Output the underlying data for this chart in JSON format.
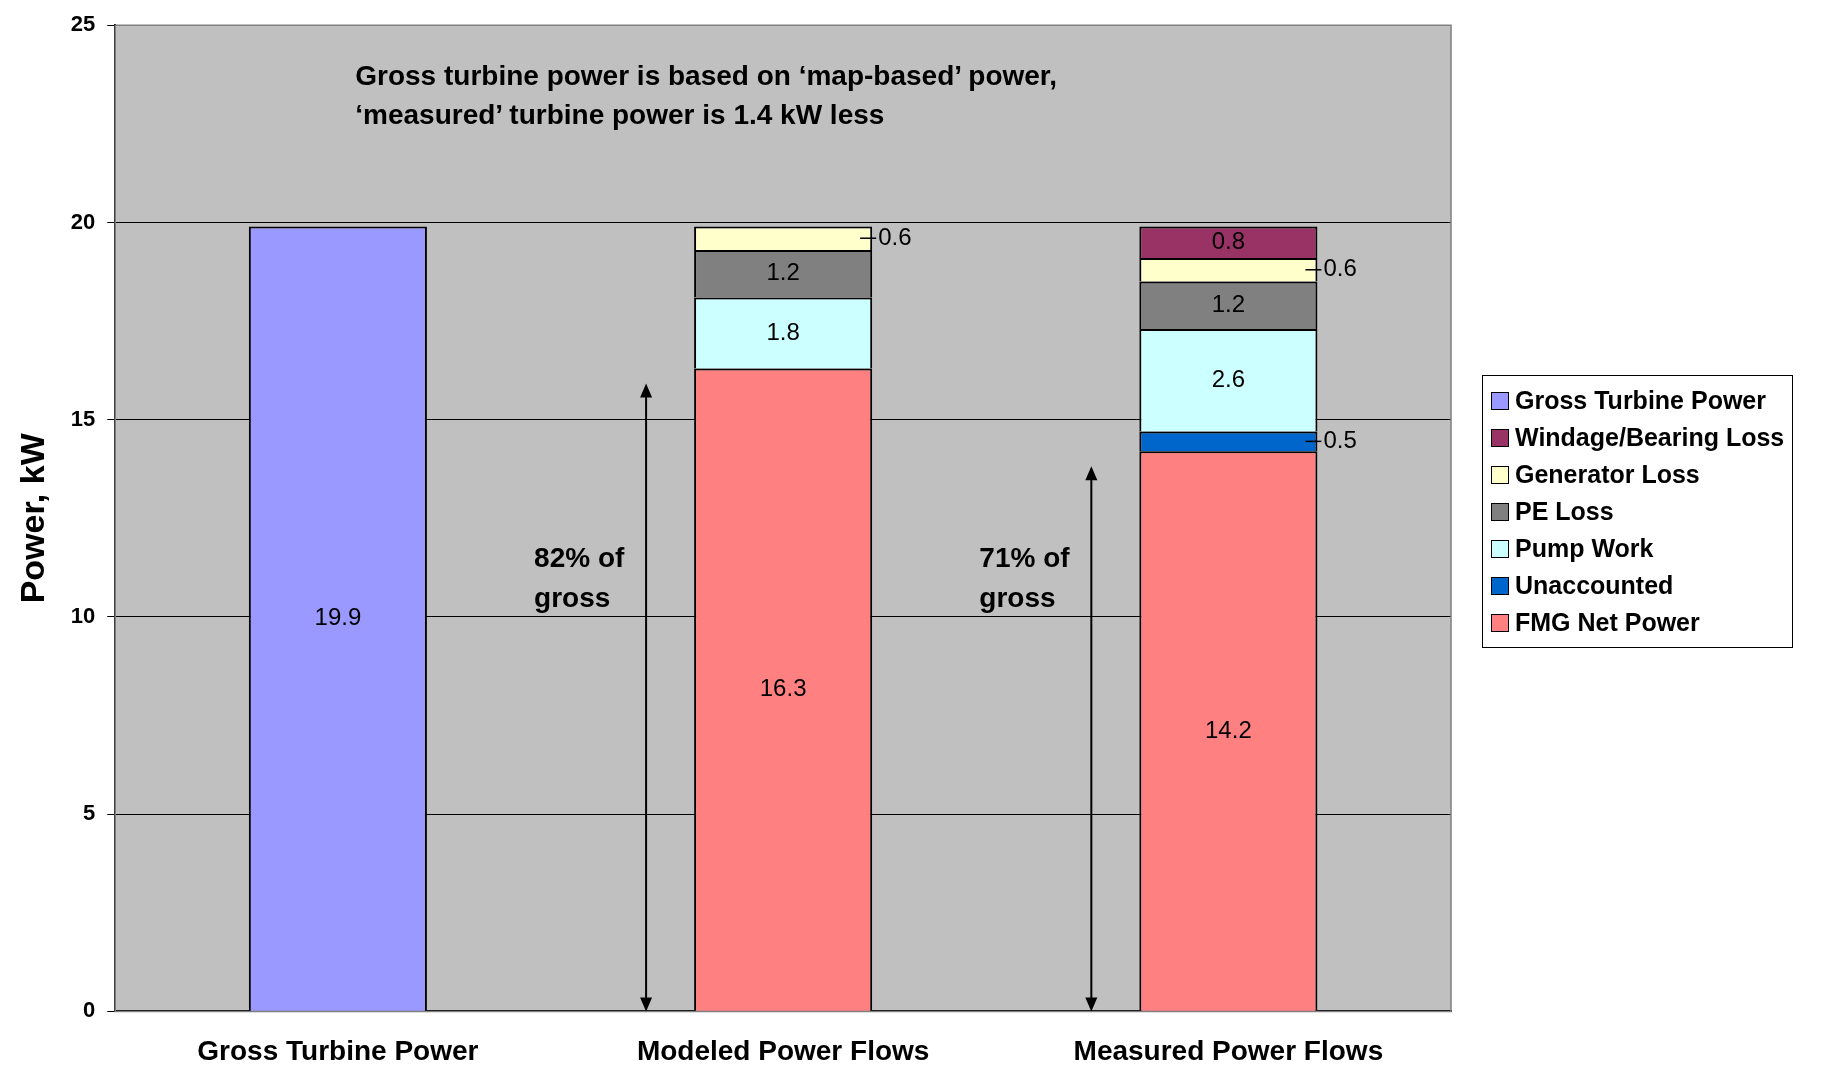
{
  "chart_data": {
    "type": "bar",
    "stacked": true,
    "ylabel": "Power, kW",
    "categories": [
      "Gross Turbine Power",
      "Modeled Power Flows",
      "Measured Power Flows"
    ],
    "series": [
      {
        "name": "FMG Net Power",
        "color": "#ff8080",
        "values": [
          null,
          16.3,
          14.2
        ]
      },
      {
        "name": "Unaccounted",
        "color": "#0066cc",
        "values": [
          null,
          null,
          0.5
        ]
      },
      {
        "name": "Pump Work",
        "color": "#ccffff",
        "values": [
          null,
          1.8,
          2.6
        ]
      },
      {
        "name": "PE Loss",
        "color": "#808080",
        "values": [
          null,
          1.2,
          1.2
        ]
      },
      {
        "name": "Generator Loss",
        "color": "#ffffcc",
        "values": [
          null,
          0.6,
          0.6
        ]
      },
      {
        "name": "Windage/Bearing Loss",
        "color": "#993366",
        "values": [
          null,
          null,
          0.8
        ]
      },
      {
        "name": "Gross Turbine Power",
        "color": "#9999ff",
        "values": [
          19.9,
          null,
          null
        ]
      }
    ],
    "ylim": [
      0,
      25
    ],
    "yticks": [
      0,
      5,
      10,
      15,
      20,
      25
    ],
    "grid": "y",
    "legend": "right",
    "data_labels": true,
    "annotations": [
      "Gross turbine power is based on ‘map-based’ power, ‘measured’ turbine power is 1.4 kW less",
      "82% of gross",
      "71% of gross"
    ]
  }
}
